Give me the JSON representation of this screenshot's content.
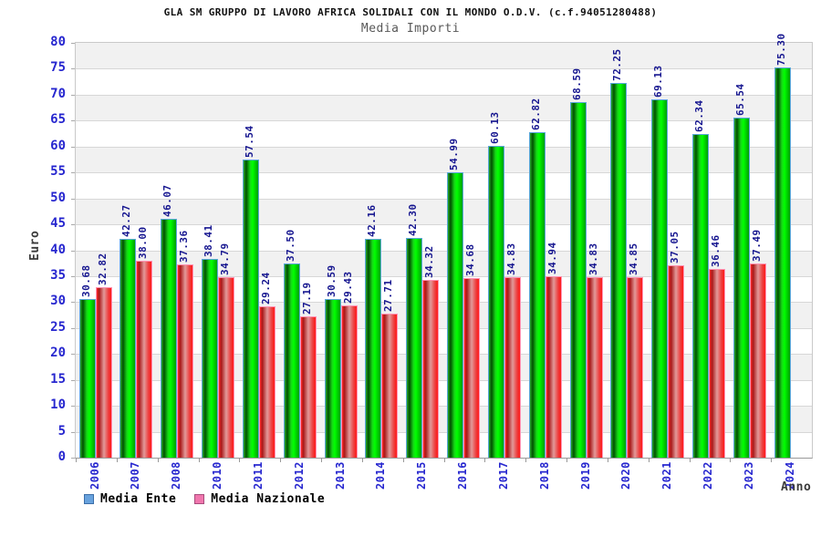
{
  "header": {
    "title": "GLA SM GRUPPO DI LAVORO AFRICA SOLIDALI CON IL MONDO O.D.V. (c.f.94051280488)",
    "subtitle": "Media Importi"
  },
  "axes": {
    "y_title": "Euro",
    "x_title": "Anno"
  },
  "legend": [
    {
      "label": "Media Ente",
      "swatch": "blue-square"
    },
    {
      "label": "Media Nazionale",
      "swatch": "pink-square"
    }
  ],
  "chart_data": {
    "type": "bar",
    "title": "Media Importi",
    "xlabel": "Anno",
    "ylabel": "Euro",
    "ylim": [
      0,
      80
    ],
    "ytick_step": 5,
    "grid": "horizontal gridlines with alternating gray/white 5-unit bands",
    "legend_position": "bottom-left",
    "label_rotation_degrees": 90,
    "categories": [
      "2006",
      "2007",
      "2008",
      "2010",
      "2011",
      "2012",
      "2013",
      "2014",
      "2015",
      "2016",
      "2017",
      "2018",
      "2019",
      "2020",
      "2021",
      "2022",
      "2023",
      "2024"
    ],
    "series": [
      {
        "name": "Media Ente",
        "color_family": "green",
        "values": [
          30.68,
          42.27,
          46.07,
          38.41,
          57.54,
          37.5,
          30.59,
          42.16,
          42.3,
          54.99,
          60.13,
          62.82,
          68.59,
          72.25,
          69.13,
          62.34,
          65.54,
          75.3
        ]
      },
      {
        "name": "Media Nazionale",
        "color_family": "red",
        "values": [
          32.82,
          38.0,
          37.36,
          34.79,
          29.24,
          27.19,
          29.43,
          27.71,
          34.32,
          34.68,
          34.83,
          34.94,
          34.83,
          34.85,
          37.05,
          36.46,
          37.49,
          null
        ]
      }
    ]
  },
  "colors": {
    "green_main": "#00ff00",
    "green_border": "#5aa7dc",
    "red_main": "#ff2a2a",
    "red_light": "#e29a9a",
    "red_border": "#ff93b4",
    "tick_blue": "#2727cf",
    "value_navy": "#15158f",
    "legend_ente": "#68a2dd",
    "legend_nazionale": "#f076ad",
    "band_gray": "#f1f1f1",
    "grid_line": "#d7d7d7"
  }
}
